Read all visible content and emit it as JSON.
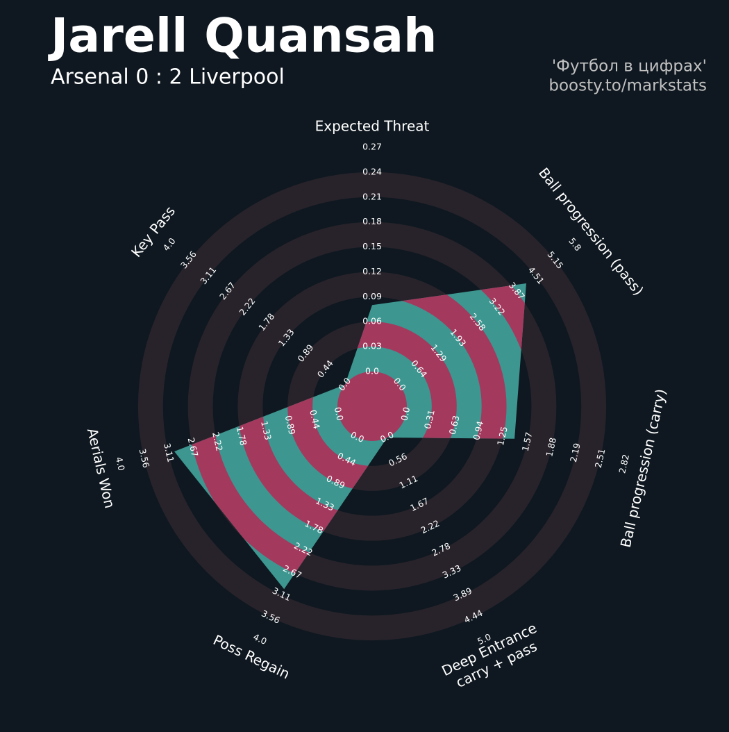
{
  "chart_data": {
    "type": "radar",
    "title": "Jarell Quansah",
    "subtitle": "Arsenal 0 : 2 Liverpool",
    "credits": [
      "'Футбол в цифрах'",
      "boosty.to/markstats"
    ],
    "ring_color": "#28232b",
    "background": "#0f1820",
    "overlap_color": "#a33a5e",
    "axes": [
      {
        "label_lines": [
          "Expected Threat"
        ],
        "lim": [
          0,
          0.27
        ],
        "ticks": [
          {
            "value": 0,
            "label": "0.0"
          },
          0.03,
          0.06,
          0.09,
          0.12,
          0.15,
          0.18,
          0.21,
          0.24,
          0.27
        ]
      },
      {
        "label_lines": [
          "Ball progression (pass)"
        ],
        "lim": [
          0,
          5.8
        ],
        "ticks": [
          {
            "value": 0,
            "label": "0.0"
          },
          0.64,
          1.29,
          1.93,
          2.58,
          3.22,
          3.87,
          4.51,
          5.15,
          5.8
        ]
      },
      {
        "label_lines": [
          "Ball progression (carry)"
        ],
        "lim": [
          0,
          2.82
        ],
        "ticks": [
          {
            "value": 0,
            "label": "0.0"
          },
          0.31,
          0.63,
          0.94,
          1.25,
          1.57,
          1.88,
          2.19,
          2.51,
          2.82
        ]
      },
      {
        "label_lines": [
          "Deep Entrance",
          "carry + pass"
        ],
        "lim": [
          0,
          5
        ],
        "ticks": [
          {
            "value": 0,
            "label": "0.0"
          },
          0.56,
          1.11,
          1.67,
          2.22,
          2.78,
          3.33,
          3.89,
          4.44,
          {
            "value": 5,
            "label": "5.0"
          }
        ]
      },
      {
        "label_lines": [
          "Poss Regain"
        ],
        "lim": [
          0,
          4
        ],
        "ticks": [
          {
            "value": 0,
            "label": "0.0"
          },
          0.44,
          0.89,
          1.33,
          1.78,
          2.22,
          2.67,
          3.11,
          3.56,
          {
            "value": 4,
            "label": "4.0"
          }
        ]
      },
      {
        "label_lines": [
          "Aerials Won"
        ],
        "lim": [
          0,
          4
        ],
        "ticks": [
          {
            "value": 0,
            "label": "0.0"
          },
          0.44,
          0.89,
          1.33,
          1.78,
          2.22,
          2.67,
          3.11,
          3.56,
          {
            "value": 4,
            "label": "4.0"
          }
        ]
      },
      {
        "label_lines": [
          "Key Pass"
        ],
        "lim": [
          0,
          4
        ],
        "ticks": [
          {
            "value": 0,
            "label": "0.0"
          },
          0.44,
          0.89,
          1.33,
          1.78,
          2.22,
          2.67,
          3.11,
          3.56,
          {
            "value": 4,
            "label": "4.0"
          }
        ]
      }
    ],
    "series": [
      {
        "color": "#3d9690",
        "values": [
          0.08,
          4.2,
          1.4,
          0,
          3,
          3,
          0
        ]
      }
    ]
  }
}
